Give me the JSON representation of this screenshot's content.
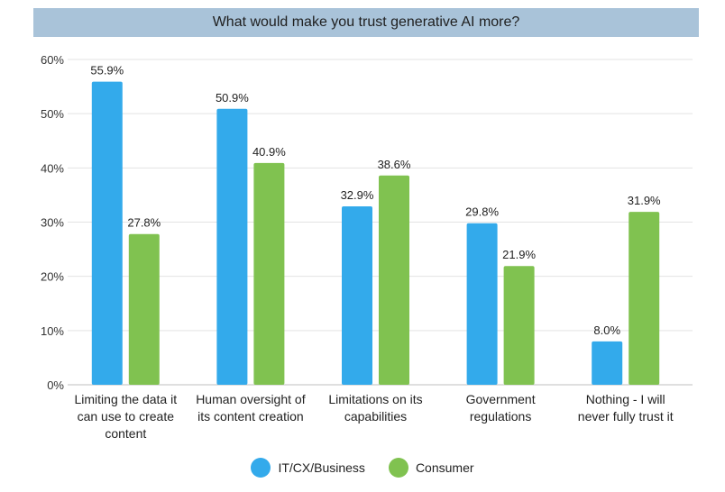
{
  "chart_data": {
    "type": "bar",
    "title": "What would make you trust generative AI more?",
    "categories": [
      [
        "Limiting the data it",
        "can use to create",
        "content"
      ],
      [
        "Human oversight of",
        "its content creation"
      ],
      [
        "Limitations on its",
        "capabilities"
      ],
      [
        "Government",
        "regulations"
      ],
      [
        "Nothing - I will",
        "never fully trust it"
      ]
    ],
    "series": [
      {
        "name": "IT/CX/Business",
        "color": "#33aaeb",
        "values": [
          55.9,
          50.9,
          32.9,
          29.8,
          8.0
        ],
        "labels": [
          "55.9%",
          "50.9%",
          "32.9%",
          "29.8%",
          "8.0%"
        ]
      },
      {
        "name": "Consumer",
        "color": "#80c250",
        "values": [
          27.8,
          40.9,
          38.6,
          21.9,
          31.9
        ],
        "labels": [
          "27.8%",
          "40.9%",
          "38.6%",
          "21.9%",
          "31.9%"
        ]
      }
    ],
    "ylim": [
      0,
      60
    ],
    "yticks": [
      0,
      10,
      20,
      30,
      40,
      50,
      60
    ],
    "ytick_labels": [
      "0%",
      "10%",
      "20%",
      "30%",
      "40%",
      "50%",
      "60%"
    ],
    "grid": true,
    "legend": "bottom-center"
  }
}
